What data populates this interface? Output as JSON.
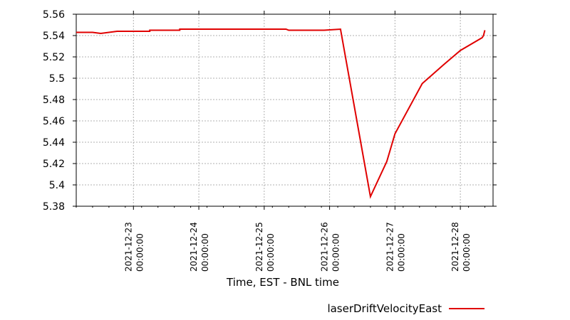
{
  "chart_data": {
    "type": "line",
    "title": "",
    "xlabel": "Time, EST - BNL time",
    "ylabel": "",
    "ylim": [
      5.38,
      5.56
    ],
    "xlim": [
      "2021-12-22T03:00:00",
      "2021-12-28T12:00:00"
    ],
    "grid": true,
    "legend_position": "bottom-right",
    "y_ticks": [
      "5.38",
      "5.4",
      "5.42",
      "5.44",
      "5.46",
      "5.48",
      "5.5",
      "5.52",
      "5.54",
      "5.56"
    ],
    "x_ticks": [
      {
        "date": "2021-12-23",
        "time": "00:00:00"
      },
      {
        "date": "2021-12-24",
        "time": "00:00:00"
      },
      {
        "date": "2021-12-25",
        "time": "00:00:00"
      },
      {
        "date": "2021-12-26",
        "time": "00:00:00"
      },
      {
        "date": "2021-12-27",
        "time": "00:00:00"
      },
      {
        "date": "2021-12-28",
        "time": "00:00:00"
      }
    ],
    "series": [
      {
        "name": "laserDriftVelocityEast",
        "color": "#e00000",
        "points": [
          {
            "x": "2021-12-22T03:00:00",
            "y": 5.543
          },
          {
            "x": "2021-12-22T09:00:00",
            "y": 5.543
          },
          {
            "x": "2021-12-22T12:00:00",
            "y": 5.542
          },
          {
            "x": "2021-12-22T18:00:00",
            "y": 5.544
          },
          {
            "x": "2021-12-23T06:00:00",
            "y": 5.544
          },
          {
            "x": "2021-12-23T06:00:00",
            "y": 5.545
          },
          {
            "x": "2021-12-23T17:00:00",
            "y": 5.545
          },
          {
            "x": "2021-12-23T17:00:00",
            "y": 5.546
          },
          {
            "x": "2021-12-25T08:00:00",
            "y": 5.546
          },
          {
            "x": "2021-12-25T09:00:00",
            "y": 5.545
          },
          {
            "x": "2021-12-25T22:00:00",
            "y": 5.545
          },
          {
            "x": "2021-12-26T04:00:00",
            "y": 5.546
          },
          {
            "x": "2021-12-26T15:00:00",
            "y": 5.389
          },
          {
            "x": "2021-12-26T21:00:00",
            "y": 5.422
          },
          {
            "x": "2021-12-27T00:00:00",
            "y": 5.448
          },
          {
            "x": "2021-12-27T10:00:00",
            "y": 5.495
          },
          {
            "x": "2021-12-27T18:00:00",
            "y": 5.513
          },
          {
            "x": "2021-12-28T00:00:00",
            "y": 5.526
          },
          {
            "x": "2021-12-28T08:00:00",
            "y": 5.538
          },
          {
            "x": "2021-12-28T08:30:00",
            "y": 5.54
          },
          {
            "x": "2021-12-28T09:00:00",
            "y": 5.545
          }
        ]
      }
    ]
  }
}
